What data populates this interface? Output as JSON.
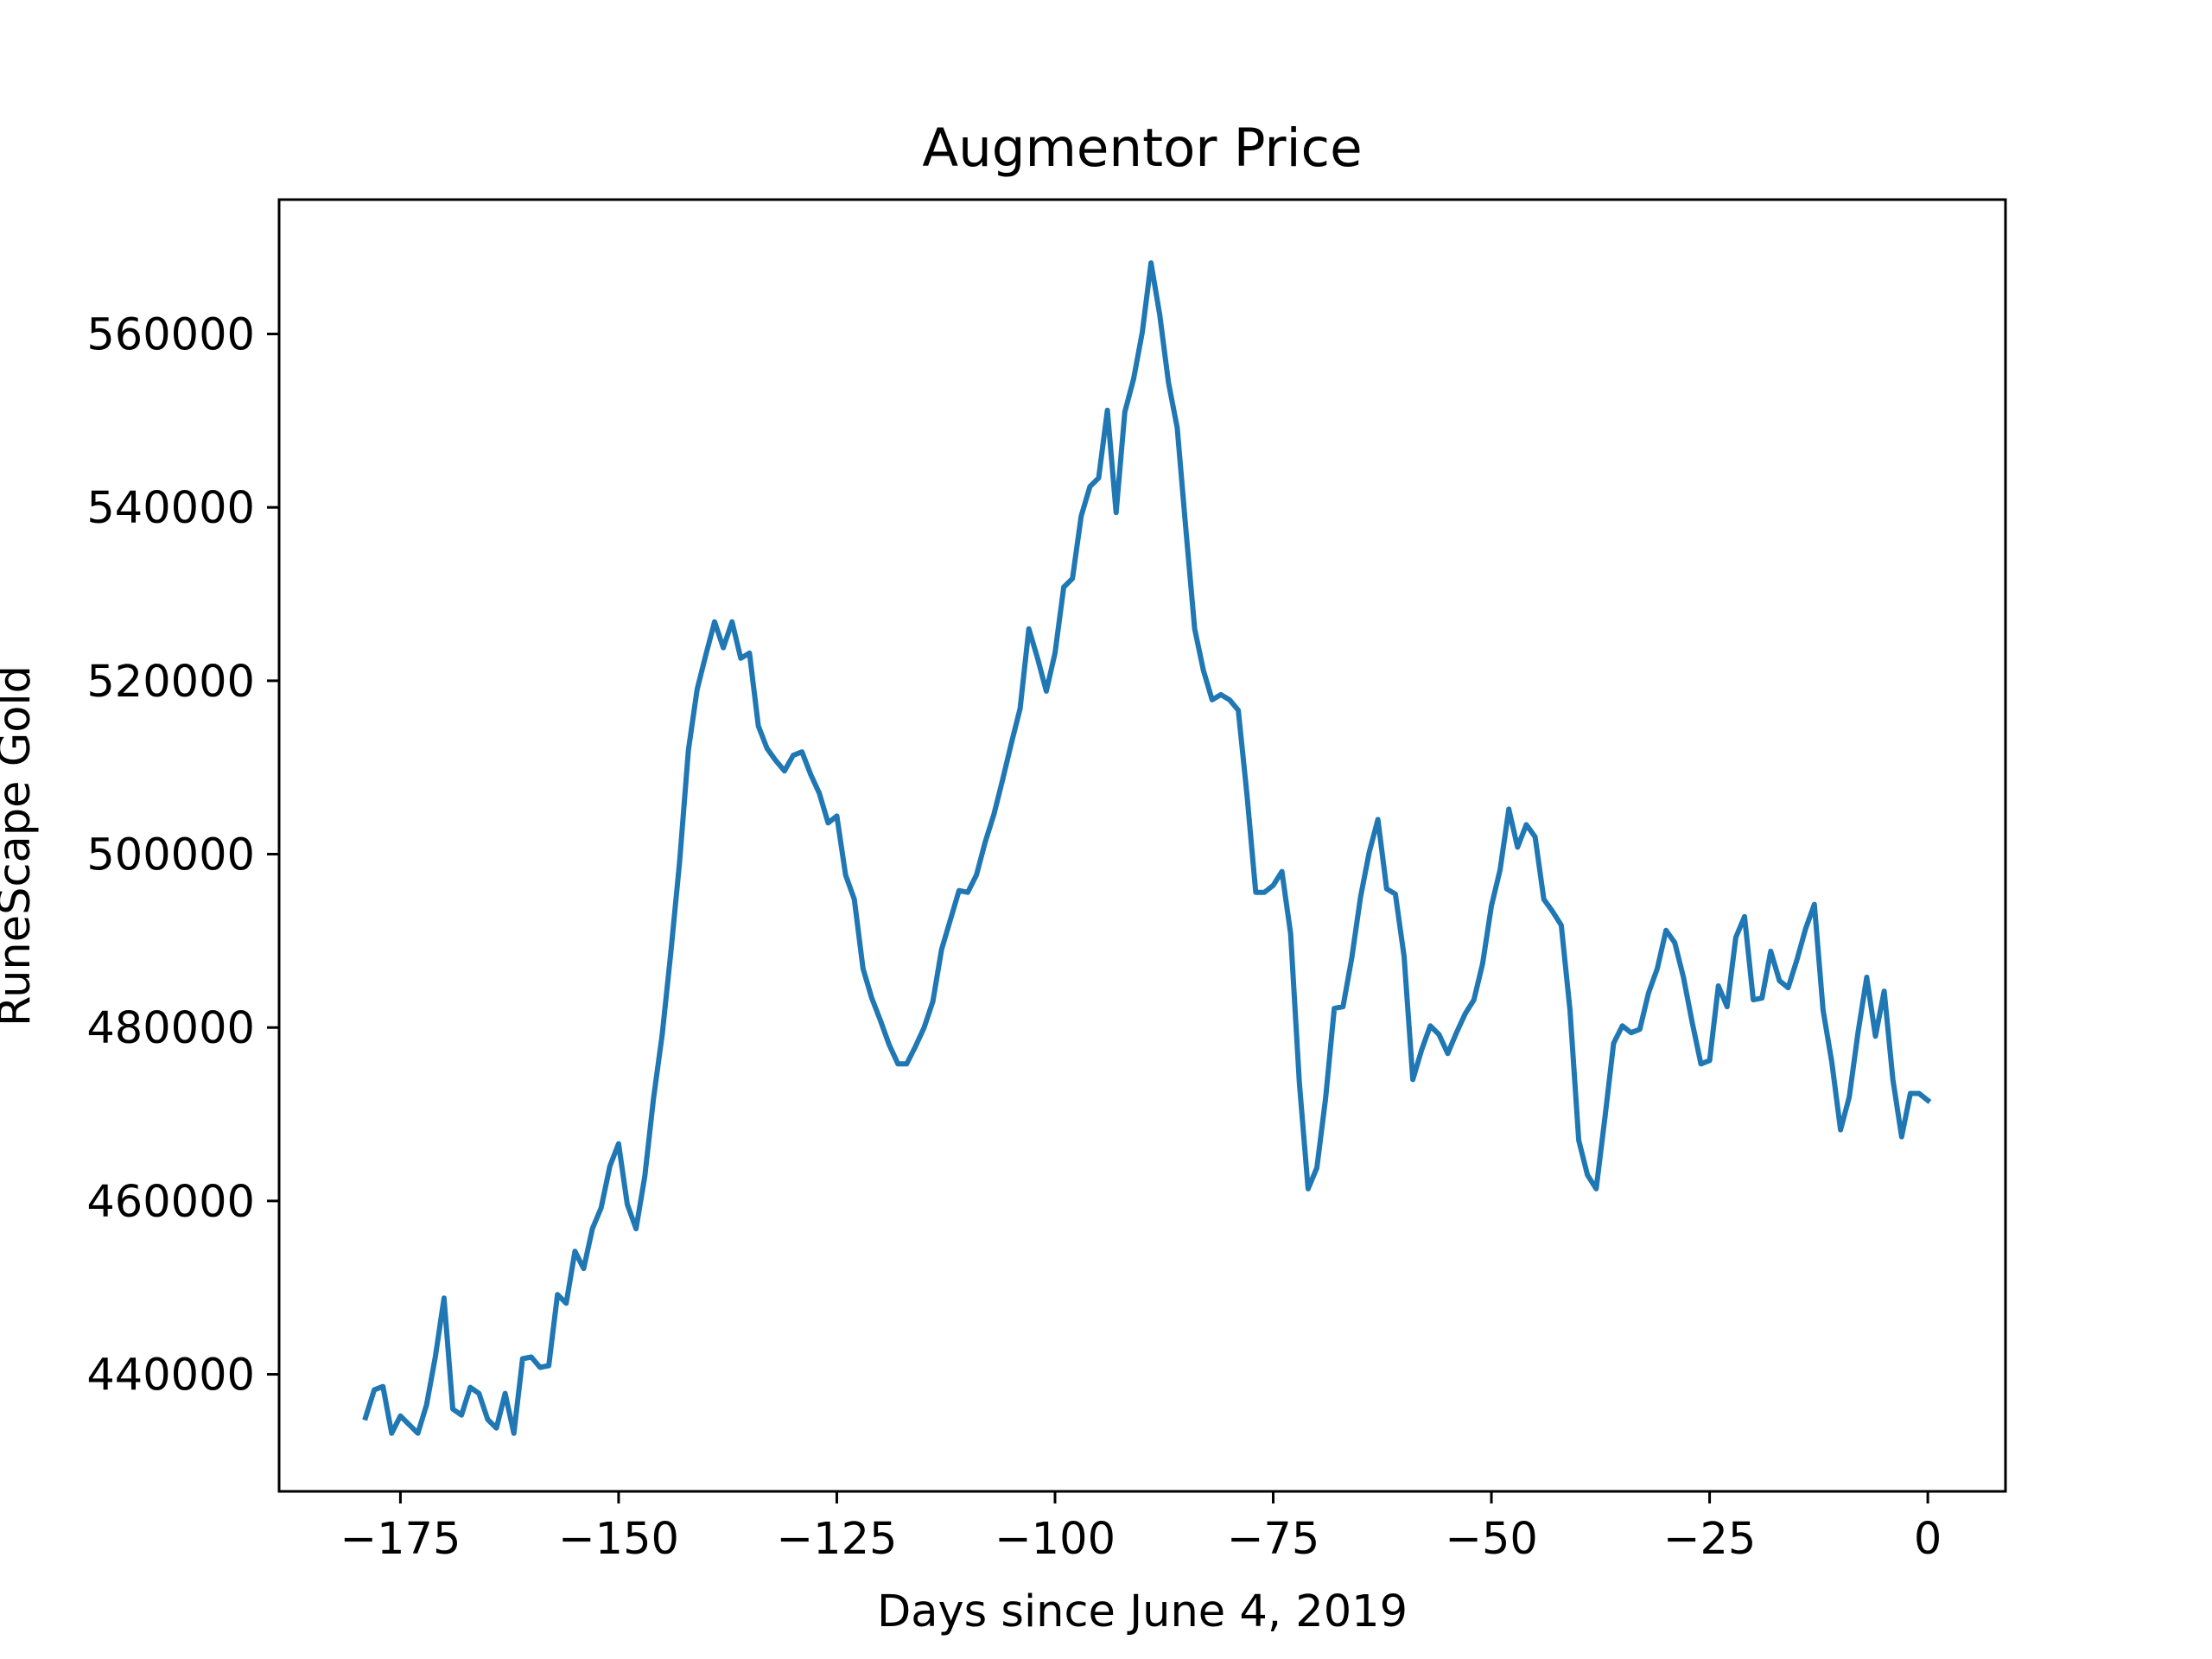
{
  "chart_data": {
    "type": "line",
    "title": "Augmentor Price",
    "xlabel": "Days since June 4, 2019",
    "ylabel": "RuneScape Gold",
    "xlim": [
      -188.9,
      8.9
    ],
    "ylim": [
      426500,
      575500
    ],
    "xticks": [
      -175,
      -150,
      -125,
      -100,
      -75,
      -50,
      -25,
      0
    ],
    "xtick_labels": [
      "−175",
      "−150",
      "−125",
      "−100",
      "−75",
      "−50",
      "−25",
      "0"
    ],
    "yticks": [
      440000,
      460000,
      480000,
      500000,
      520000,
      540000,
      560000
    ],
    "ytick_labels": [
      "440000",
      "460000",
      "480000",
      "500000",
      "520000",
      "540000",
      "560000"
    ],
    "grid": false,
    "series": [
      {
        "color": "#1f77b4",
        "x": [
          -179,
          -178,
          -177,
          -176,
          -175,
          -174,
          -173,
          -172,
          -171,
          -170,
          -169,
          -168,
          -167,
          -166,
          -165,
          -164,
          -163,
          -162,
          -161,
          -160,
          -159,
          -158,
          -157,
          -156,
          -155,
          -154,
          -153,
          -152,
          -151,
          -150,
          -149,
          -148,
          -147,
          -146,
          -145,
          -144,
          -143,
          -142,
          -141,
          -140,
          -139,
          -138,
          -137,
          -136,
          -135,
          -134,
          -133,
          -132,
          -131,
          -130,
          -129,
          -128,
          -127,
          -126,
          -125,
          -124,
          -123,
          -122,
          -121,
          -120,
          -119,
          -118,
          -117,
          -116,
          -115,
          -114,
          -113,
          -112,
          -111,
          -110,
          -109,
          -108,
          -107,
          -106,
          -105,
          -104,
          -103,
          -102,
          -101,
          -100,
          -99,
          -98,
          -97,
          -96,
          -95,
          -94,
          -93,
          -92,
          -91,
          -90,
          -89,
          -88,
          -87,
          -86,
          -85,
          -84,
          -83,
          -82,
          -81,
          -80,
          -79,
          -78,
          -77,
          -76,
          -75,
          -74,
          -73,
          -72,
          -71,
          -70,
          -69,
          -68,
          -67,
          -66,
          -65,
          -64,
          -63,
          -62,
          -61,
          -60,
          -59,
          -58,
          -57,
          -56,
          -55,
          -54,
          -53,
          -52,
          -51,
          -50,
          -49,
          -48,
          -47,
          -46,
          -45,
          -44,
          -43,
          -42,
          -41,
          -40,
          -39,
          -38,
          -37,
          -36,
          -35,
          -34,
          -33,
          -32,
          -31,
          -30,
          -29,
          -28,
          -27,
          -26,
          -25,
          -24,
          -23,
          -22,
          -21,
          -20,
          -19,
          -18,
          -17,
          -16,
          -15,
          -14,
          -13,
          -12,
          -11,
          -10,
          -9,
          -8,
          -7,
          -6,
          -5,
          -4,
          -3,
          -2,
          -1,
          0
        ],
        "y": [
          435000,
          438200,
          438600,
          433200,
          435200,
          434200,
          433200,
          436500,
          442000,
          448800,
          436000,
          435300,
          438500,
          437800,
          434800,
          433800,
          437800,
          433200,
          441800,
          442000,
          440800,
          441000,
          449200,
          448200,
          454200,
          452200,
          456800,
          459200,
          464000,
          466600,
          459600,
          456800,
          462800,
          471800,
          479200,
          488800,
          499200,
          512000,
          519000,
          523000,
          526800,
          523800,
          526800,
          522600,
          523200,
          514800,
          512200,
          510800,
          509600,
          511400,
          511800,
          509200,
          507000,
          503600,
          504400,
          497600,
          494800,
          486800,
          483400,
          480800,
          478000,
          475800,
          475800,
          477800,
          480000,
          483000,
          489000,
          492400,
          495800,
          495600,
          497600,
          501400,
          504600,
          508600,
          512800,
          516800,
          526000,
          522600,
          518800,
          523200,
          530800,
          531800,
          539000,
          542400,
          543400,
          551200,
          539400,
          551000,
          554800,
          560200,
          568200,
          562200,
          554400,
          549200,
          537400,
          526000,
          521200,
          517800,
          518400,
          517800,
          516600,
          506800,
          495600,
          495600,
          496400,
          498000,
          490800,
          473600,
          461400,
          463800,
          471800,
          482200,
          482400,
          488000,
          495000,
          500200,
          504000,
          496000,
          495400,
          488200,
          474000,
          477400,
          480200,
          479200,
          477000,
          479400,
          481600,
          483200,
          487400,
          494000,
          498200,
          505200,
          500800,
          503400,
          502000,
          494800,
          493400,
          491800,
          482000,
          467000,
          463000,
          461400,
          469600,
          478200,
          480200,
          479400,
          479800,
          484000,
          486800,
          491200,
          489800,
          485800,
          480600,
          475800,
          476200,
          484800,
          482400,
          490400,
          492800,
          483200,
          483400,
          488800,
          485400,
          484600,
          487800,
          491400,
          494200,
          482000,
          476000,
          468200,
          472000,
          479400,
          485800,
          479000,
          484200,
          474000,
          467400,
          472400,
          472400,
          471600
        ]
      }
    ]
  }
}
